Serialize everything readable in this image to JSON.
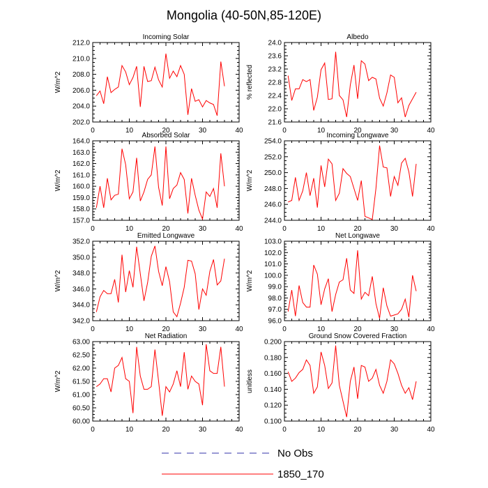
{
  "title": "Mongolia (40-50N,85-120E)",
  "colors": {
    "model": "#ff0000",
    "obs": "#3333aa",
    "axis": "#000000"
  },
  "legend": [
    {
      "label": "No Obs",
      "style": "dashed",
      "color": "#3333aa"
    },
    {
      "label": "1850_170",
      "style": "solid",
      "color": "#ff0000"
    }
  ],
  "chart_data": [
    {
      "type": "line",
      "title": "Incoming Solar",
      "ylabel": "W/m^2",
      "xlim": [
        0,
        40
      ],
      "xticks": [
        0,
        10,
        20,
        30,
        40
      ],
      "ylim": [
        202,
        212
      ],
      "yticks": [
        "202.0",
        "204.0",
        "206.0",
        "208.0",
        "210.0",
        "212.0"
      ],
      "x": [
        1,
        2,
        3,
        4,
        5,
        6,
        7,
        8,
        9,
        10,
        11,
        12,
        13,
        14,
        15,
        16,
        17,
        18,
        19,
        20,
        21,
        22,
        23,
        24,
        25,
        26,
        27,
        28,
        29,
        30,
        31,
        32,
        33,
        34,
        35,
        36
      ],
      "series": [
        {
          "name": "1850_170",
          "values": [
            205.3,
            205.9,
            204.3,
            207.7,
            205.7,
            206.1,
            206.4,
            209.1,
            208.3,
            206.7,
            207.6,
            209.0,
            203.9,
            209.0,
            207.1,
            207.2,
            208.9,
            207.3,
            206.4,
            210.6,
            207.5,
            208.4,
            207.7,
            209.1,
            208.0,
            202.9,
            206.2,
            204.6,
            204.8,
            203.9,
            204.7,
            204.4,
            204.2,
            202.8,
            209.6,
            206.5
          ]
        }
      ]
    },
    {
      "type": "line",
      "title": "Albedo",
      "ylabel": "% reflected",
      "xlim": [
        0,
        40
      ],
      "xticks": [
        0,
        10,
        20,
        30,
        40
      ],
      "ylim": [
        21.6,
        24.0
      ],
      "yticks": [
        "21.6",
        "22.0",
        "22.4",
        "22.8",
        "23.2",
        "23.6",
        "24.0"
      ],
      "x": [
        1,
        2,
        3,
        4,
        5,
        6,
        7,
        8,
        9,
        10,
        11,
        12,
        13,
        14,
        15,
        16,
        17,
        18,
        19,
        20,
        21,
        22,
        23,
        24,
        25,
        26,
        27,
        28,
        29,
        30,
        31,
        32,
        33,
        34,
        35,
        36
      ],
      "series": [
        {
          "name": "1850_170",
          "values": [
            23.0,
            22.25,
            22.6,
            22.6,
            22.88,
            22.82,
            22.88,
            21.95,
            22.35,
            23.18,
            23.38,
            22.28,
            22.3,
            23.72,
            22.4,
            22.27,
            21.75,
            22.72,
            23.32,
            22.3,
            23.45,
            23.35,
            22.85,
            22.95,
            22.9,
            22.32,
            22.08,
            22.48,
            23.02,
            22.95,
            22.18,
            22.33,
            21.75,
            22.1,
            22.3,
            22.5
          ]
        }
      ]
    },
    {
      "type": "line",
      "title": "Absorbed Solar",
      "ylabel": "W/m^2",
      "xlim": [
        0,
        40
      ],
      "xticks": [
        0,
        10,
        20,
        30,
        40
      ],
      "ylim": [
        157,
        164
      ],
      "yticks": [
        "157.0",
        "158.0",
        "159.0",
        "160.0",
        "161.0",
        "162.0",
        "163.0",
        "164.0"
      ],
      "x": [
        1,
        2,
        3,
        4,
        5,
        6,
        7,
        8,
        9,
        10,
        11,
        12,
        13,
        14,
        15,
        16,
        17,
        18,
        19,
        20,
        21,
        22,
        23,
        24,
        25,
        26,
        27,
        28,
        29,
        30,
        31,
        32,
        33,
        34,
        35,
        36
      ],
      "series": [
        {
          "name": "1850_170",
          "values": [
            158.1,
            160.0,
            158.1,
            160.7,
            158.8,
            159.2,
            159.3,
            163.3,
            161.9,
            158.9,
            159.5,
            162.5,
            158.7,
            159.5,
            160.6,
            161.0,
            163.5,
            159.9,
            158.3,
            163.5,
            158.9,
            159.8,
            160.1,
            161.2,
            160.6,
            157.6,
            160.7,
            159.2,
            157.9,
            157.1,
            159.5,
            159.1,
            159.8,
            158.1,
            162.9,
            160.0
          ]
        }
      ]
    },
    {
      "type": "line",
      "title": "Incoming Longwave",
      "ylabel": "W/m^2",
      "xlim": [
        0,
        40
      ],
      "xticks": [
        0,
        10,
        20,
        30,
        40
      ],
      "ylim": [
        244,
        254
      ],
      "yticks": [
        "244.0",
        "246.0",
        "248.0",
        "250.0",
        "252.0",
        "254.0"
      ],
      "x": [
        1,
        2,
        3,
        4,
        5,
        6,
        7,
        8,
        9,
        10,
        11,
        12,
        13,
        14,
        15,
        16,
        17,
        18,
        19,
        20,
        21,
        22,
        23,
        24,
        25,
        26,
        27,
        28,
        29,
        30,
        31,
        32,
        33,
        34,
        35,
        36
      ],
      "series": [
        {
          "name": "1850_170",
          "values": [
            246.3,
            246.5,
            249.4,
            246.5,
            247.7,
            250.0,
            247.1,
            249.3,
            245.6,
            250.9,
            248.2,
            251.7,
            251.1,
            246.5,
            247.4,
            250.5,
            249.9,
            249.5,
            248.0,
            246.5,
            249.0,
            244.5,
            244.3,
            244.1,
            248.0,
            253.4,
            250.7,
            250.6,
            247.0,
            249.5,
            248.4,
            251.2,
            251.8,
            250.1,
            247.0,
            251.1
          ]
        }
      ]
    },
    {
      "type": "line",
      "title": "Emitted Longwave",
      "ylabel": "W/m^2",
      "xlim": [
        0,
        40
      ],
      "xticks": [
        0,
        10,
        20,
        30,
        40
      ],
      "ylim": [
        342,
        352
      ],
      "yticks": [
        "342.0",
        "344.0",
        "346.0",
        "348.0",
        "350.0",
        "352.0"
      ],
      "x": [
        1,
        2,
        3,
        4,
        5,
        6,
        7,
        8,
        9,
        10,
        11,
        12,
        13,
        14,
        15,
        16,
        17,
        18,
        19,
        20,
        21,
        22,
        23,
        24,
        25,
        26,
        27,
        28,
        29,
        30,
        31,
        32,
        33,
        34,
        35,
        36
      ],
      "series": [
        {
          "name": "1850_170",
          "values": [
            343.1,
            345.0,
            345.8,
            345.4,
            345.4,
            347.2,
            344.3,
            350.3,
            345.6,
            348.3,
            346.2,
            351.3,
            347.9,
            344.5,
            346.8,
            350.1,
            351.4,
            348.2,
            346.4,
            348.8,
            346.9,
            343.1,
            342.5,
            344.2,
            346.2,
            349.6,
            349.5,
            347.9,
            343.4,
            346.0,
            345.2,
            348.2,
            349.7,
            346.5,
            347.0,
            349.8
          ]
        }
      ]
    },
    {
      "type": "line",
      "title": "Net Longwave",
      "ylabel": "W/m^2",
      "xlim": [
        0,
        40
      ],
      "xticks": [
        0,
        10,
        20,
        30,
        40
      ],
      "ylim": [
        96,
        103
      ],
      "yticks": [
        "96.0",
        "97.0",
        "98.0",
        "99.0",
        "100.0",
        "101.0",
        "102.0",
        "103.0"
      ],
      "x": [
        1,
        2,
        3,
        4,
        5,
        6,
        7,
        8,
        9,
        10,
        11,
        12,
        13,
        14,
        15,
        16,
        17,
        18,
        19,
        20,
        21,
        22,
        23,
        24,
        25,
        26,
        27,
        28,
        29,
        30,
        31,
        32,
        33,
        34,
        35,
        36
      ],
      "series": [
        {
          "name": "1850_170",
          "values": [
            96.8,
            98.7,
            96.4,
            99.1,
            97.6,
            97.2,
            97.2,
            100.9,
            100.1,
            97.4,
            98.8,
            99.7,
            96.8,
            98.3,
            99.4,
            99.6,
            101.5,
            98.7,
            98.4,
            102.2,
            97.9,
            98.5,
            98.2,
            99.9,
            97.5,
            96.2,
            98.9,
            97.3,
            96.4,
            96.5,
            96.6,
            97.0,
            97.9,
            96.3,
            100.0,
            98.6
          ]
        }
      ]
    },
    {
      "type": "line",
      "title": "Net Radiation",
      "ylabel": "W/m^2",
      "xlim": [
        0,
        40
      ],
      "xticks": [
        0,
        10,
        20,
        30,
        40
      ],
      "ylim": [
        60,
        63
      ],
      "yticks": [
        "60.00",
        "60.50",
        "61.00",
        "61.50",
        "62.00",
        "62.50",
        "63.00"
      ],
      "x": [
        1,
        2,
        3,
        4,
        5,
        6,
        7,
        8,
        9,
        10,
        11,
        12,
        13,
        14,
        15,
        16,
        17,
        18,
        19,
        20,
        21,
        22,
        23,
        24,
        25,
        26,
        27,
        28,
        29,
        30,
        31,
        32,
        33,
        34,
        35,
        36
      ],
      "series": [
        {
          "name": "1850_170",
          "values": [
            61.3,
            61.4,
            61.6,
            61.6,
            61.1,
            62.0,
            62.1,
            62.4,
            61.6,
            61.5,
            60.3,
            62.8,
            61.7,
            61.2,
            61.2,
            61.3,
            62.7,
            61.5,
            60.2,
            61.3,
            61.1,
            61.4,
            61.9,
            61.3,
            62.6,
            61.2,
            61.7,
            61.5,
            61.4,
            60.6,
            62.9,
            61.9,
            61.8,
            61.8,
            62.8,
            61.3
          ]
        }
      ]
    },
    {
      "type": "line",
      "title": "Ground Snow Covered Fraction",
      "ylabel": "unitless",
      "xlim": [
        0,
        40
      ],
      "xticks": [
        0,
        10,
        20,
        30,
        40
      ],
      "ylim": [
        0.1,
        0.2
      ],
      "yticks": [
        "0.100",
        "0.120",
        "0.140",
        "0.160",
        "0.180",
        "0.200"
      ],
      "x": [
        1,
        2,
        3,
        4,
        5,
        6,
        7,
        8,
        9,
        10,
        11,
        12,
        13,
        14,
        15,
        16,
        17,
        18,
        19,
        20,
        21,
        22,
        23,
        24,
        25,
        26,
        27,
        28,
        29,
        30,
        31,
        32,
        33,
        34,
        35,
        36
      ],
      "series": [
        {
          "name": "1850_170",
          "values": [
            0.162,
            0.15,
            0.154,
            0.161,
            0.165,
            0.177,
            0.17,
            0.135,
            0.143,
            0.187,
            0.17,
            0.141,
            0.148,
            0.195,
            0.145,
            0.125,
            0.105,
            0.15,
            0.168,
            0.128,
            0.17,
            0.168,
            0.15,
            0.154,
            0.165,
            0.145,
            0.135,
            0.15,
            0.177,
            0.172,
            0.16,
            0.145,
            0.135,
            0.142,
            0.127,
            0.15
          ]
        }
      ]
    }
  ]
}
